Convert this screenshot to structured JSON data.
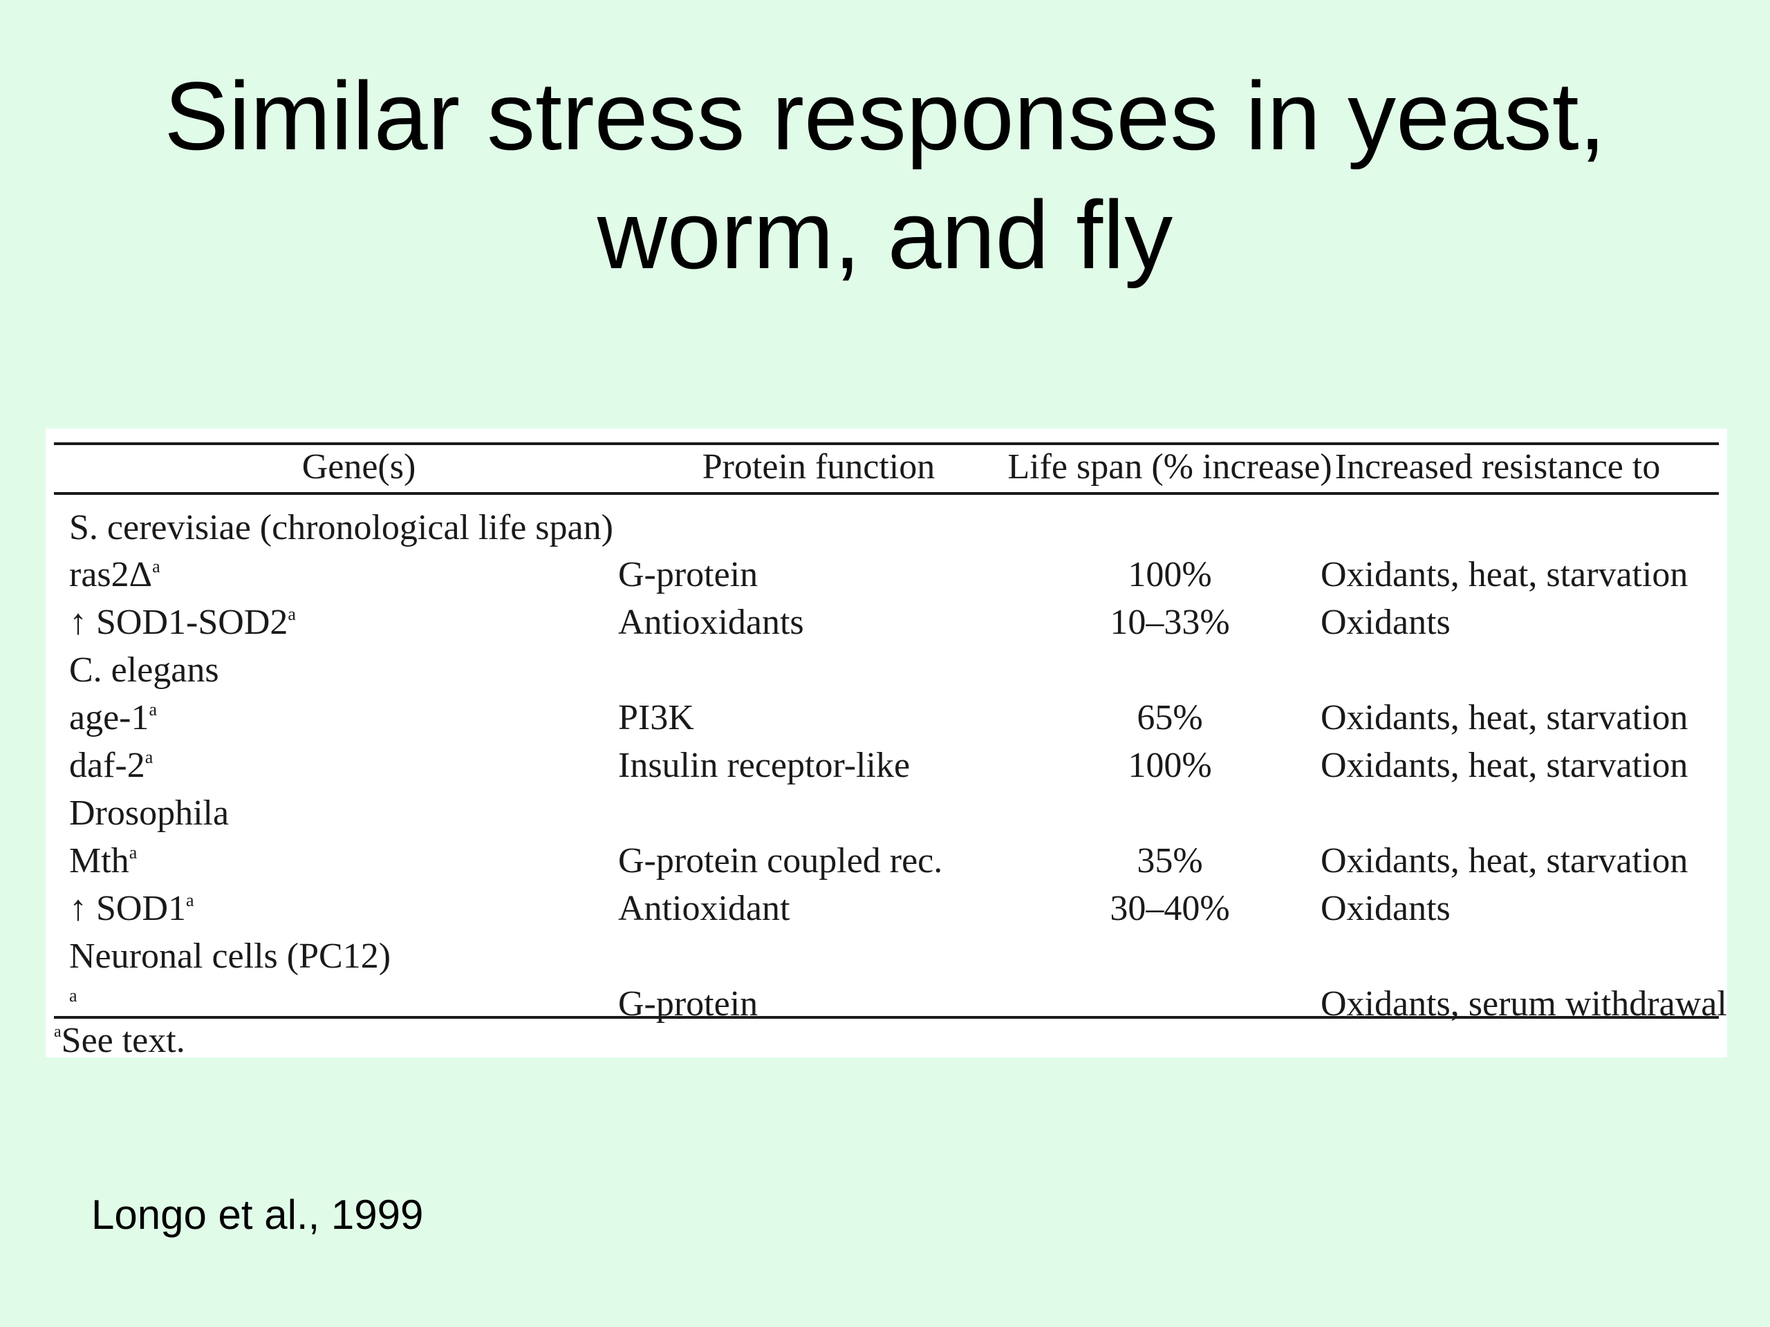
{
  "slide": {
    "title_line1": "Similar stress responses in yeast,",
    "title_line2": "worm, and fly",
    "citation": "Longo et al., 1999"
  },
  "table": {
    "headers": [
      "Gene(s)",
      "Protein function",
      "Life span (% increase)",
      "Increased resistance to"
    ],
    "rows": [
      {
        "gene": "S. cerevisiae (chronological life span)",
        "sup": "",
        "protein": "",
        "lifespan": "",
        "resistance": ""
      },
      {
        "gene": "ras2Δ",
        "sup": "a",
        "protein": "G-protein",
        "lifespan": "100%",
        "resistance": "Oxidants, heat, starvation"
      },
      {
        "gene": "↑ SOD1-SOD2",
        "sup": "a",
        "protein": "Antioxidants",
        "lifespan": "10–33%",
        "resistance": "Oxidants"
      },
      {
        "gene": "C. elegans",
        "sup": "",
        "protein": "",
        "lifespan": "",
        "resistance": ""
      },
      {
        "gene": "age-1",
        "sup": "a",
        "protein": "PI3K",
        "lifespan": "65%",
        "resistance": "Oxidants, heat, starvation"
      },
      {
        "gene": "daf-2",
        "sup": "a",
        "protein": "Insulin receptor-like",
        "lifespan": "100%",
        "resistance": "Oxidants, heat, starvation"
      },
      {
        "gene": "Drosophila",
        "sup": "",
        "protein": "",
        "lifespan": "",
        "resistance": ""
      },
      {
        "gene": "Mth",
        "sup": "a",
        "protein": "G-protein coupled rec.",
        "lifespan": "35%",
        "resistance": "Oxidants, heat, starvation"
      },
      {
        "gene": "↑ SOD1",
        "sup": "a",
        "protein": "Antioxidant",
        "lifespan": "30–40%",
        "resistance": "Oxidants"
      },
      {
        "gene": "Neuronal cells (PC12)",
        "sup": "",
        "protein": "",
        "lifespan": "",
        "resistance": ""
      },
      {
        "gene": "",
        "sup": "a",
        "protein": "G-protein",
        "lifespan": "",
        "resistance": "Oxidants, serum withdrawal"
      }
    ],
    "footnote_mark": "a",
    "footnote_text": "See text."
  }
}
